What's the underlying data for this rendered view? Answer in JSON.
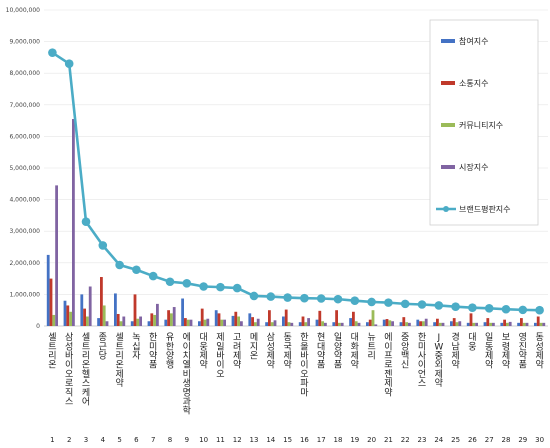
{
  "chart_data": {
    "type": "bar",
    "ylim": [
      0,
      10000000
    ],
    "yticks": [
      "0",
      "1,000,000",
      "2,000,000",
      "3,000,000",
      "4,000,000",
      "5,000,000",
      "6,000,000",
      "7,000,000",
      "8,000,000",
      "9,000,000",
      "10,000,000"
    ],
    "ranks": [
      "1",
      "2",
      "3",
      "4",
      "5",
      "6",
      "7",
      "8",
      "9",
      "10",
      "11",
      "12",
      "13",
      "14",
      "15",
      "16",
      "17",
      "18",
      "19",
      "20",
      "21",
      "22",
      "23",
      "24",
      "25",
      "26",
      "27",
      "28",
      "29",
      "30"
    ],
    "categories": [
      "셀트리온",
      "삼성바이오로직스",
      "셀트리온헬스케어",
      "종근당",
      "셀트리온제약",
      "녹십자",
      "한미약품",
      "유한양행",
      "에이치엘비생명과학",
      "대웅제약",
      "제일바이오",
      "고려제약",
      "메지온",
      "삼성제약",
      "동국제약",
      "한올바이오파마",
      "현대약품",
      "일양약품",
      "대화제약",
      "뉴트리",
      "에이프로젠제약",
      "중앙백신",
      "한미사이언스",
      "JW중외제약",
      "경남제약",
      "대웅",
      "일동제약",
      "보령제약",
      "영진약품",
      "동성제약"
    ],
    "series": [
      {
        "name": "참여지수",
        "color": "#4472c4",
        "values": [
          2250000,
          800000,
          1000000,
          250000,
          1030000,
          150000,
          150000,
          200000,
          870000,
          150000,
          500000,
          320000,
          400000,
          120000,
          300000,
          120000,
          200000,
          120000,
          250000,
          120000,
          200000,
          120000,
          200000,
          120000,
          150000,
          100000,
          120000,
          100000,
          100000,
          100000
        ]
      },
      {
        "name": "소통지수",
        "color": "#c0392b",
        "values": [
          1500000,
          650000,
          550000,
          1550000,
          380000,
          1000000,
          400000,
          500000,
          250000,
          550000,
          400000,
          450000,
          280000,
          500000,
          520000,
          300000,
          480000,
          500000,
          450000,
          200000,
          220000,
          280000,
          150000,
          230000,
          250000,
          400000,
          250000,
          200000,
          250000,
          300000
        ]
      },
      {
        "name": "커뮤니티지수",
        "color": "#9bbb59",
        "values": [
          350000,
          450000,
          300000,
          650000,
          150000,
          230000,
          350000,
          400000,
          200000,
          200000,
          200000,
          300000,
          120000,
          120000,
          120000,
          120000,
          150000,
          100000,
          150000,
          500000,
          180000,
          120000,
          150000,
          100000,
          120000,
          100000,
          100000,
          100000,
          100000,
          100000
        ]
      },
      {
        "name": "시장지수",
        "color": "#8064a2",
        "values": [
          4450000,
          6550000,
          1250000,
          150000,
          300000,
          300000,
          700000,
          600000,
          200000,
          230000,
          200000,
          150000,
          230000,
          180000,
          100000,
          250000,
          100000,
          100000,
          100000,
          50000,
          150000,
          100000,
          230000,
          100000,
          150000,
          100000,
          100000,
          130000,
          100000,
          100000
        ]
      }
    ],
    "line": {
      "name": "브랜드평판지수",
      "color": "#4bacc6",
      "values": [
        8650000,
        8300000,
        3300000,
        2550000,
        1930000,
        1780000,
        1580000,
        1400000,
        1350000,
        1250000,
        1230000,
        1200000,
        950000,
        930000,
        900000,
        880000,
        870000,
        850000,
        800000,
        760000,
        740000,
        700000,
        680000,
        650000,
        610000,
        580000,
        560000,
        530000,
        510000,
        500000
      ]
    }
  }
}
